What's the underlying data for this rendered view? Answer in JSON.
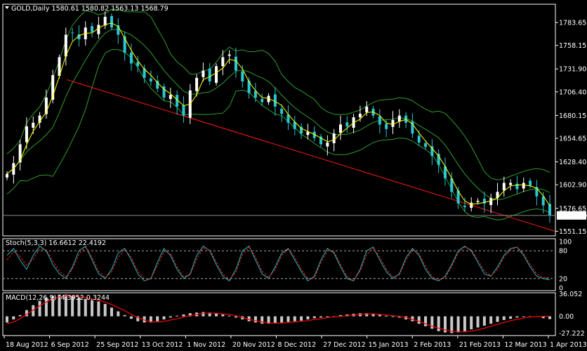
{
  "header": {
    "main": "GOLD,Daily  1580.61 1580.82 1563.13 1568.79",
    "stoch": "Stoch(5,3,3) 16.6612 22.4192",
    "macd": "MACD(12,26,9) -4.3952 0.3244"
  },
  "colors": {
    "bull": "#ffffff",
    "bear": "#29c8d2",
    "ma": "#ffff00",
    "bands": "#2e9d2e",
    "trend": "#ff1a1a",
    "stoch_main": "#27b7c0",
    "stoch_signal": "#ff2020",
    "macd_hist": "#c8c8c8",
    "macd_signal": "#ff0000",
    "axis": "#ffffff"
  },
  "price_axis": {
    "ticks": [
      "1783.65",
      "1758.15",
      "1731.90",
      "1706.40",
      "1680.15",
      "1654.65",
      "1628.40",
      "1602.90",
      "1576.65",
      "1551.15"
    ],
    "last": "1568.79",
    "range": [
      1546,
      1804
    ]
  },
  "stoch_axis": {
    "ticks": [
      "100",
      "80",
      "20",
      "0"
    ],
    "levels": [
      80,
      20
    ]
  },
  "macd_axis": {
    "ticks": [
      "36.052",
      "0.00",
      "-27.222"
    ],
    "range": [
      -31,
      38
    ]
  },
  "dates": [
    "18 Aug 2012",
    "6 Sep 2012",
    "25 Sep 2012",
    "13 Oct 2012",
    "1 Nov 2012",
    "20 Nov 2012",
    "8 Dec 2012",
    "27 Dec 2012",
    "15 Jan 2013",
    "2 Feb 2013",
    "21 Feb 2013",
    "12 Mar 2013",
    "1 Apr 2013"
  ],
  "chart_data": {
    "type": "candlestick",
    "symbol": "GOLD",
    "timeframe": "Daily",
    "last_bar": {
      "open": 1580.61,
      "high": 1580.82,
      "low": 1563.13,
      "close": 1568.79
    },
    "close_path": [
      1615,
      1627,
      1648,
      1668,
      1672,
      1680,
      1700,
      1725,
      1745,
      1770,
      1772,
      1765,
      1778,
      1773,
      1781,
      1790,
      1778,
      1770,
      1750,
      1738,
      1735,
      1722,
      1718,
      1710,
      1700,
      1703,
      1690,
      1680,
      1708,
      1722,
      1730,
      1718,
      1735,
      1745,
      1748,
      1730,
      1718,
      1705,
      1700,
      1695,
      1702,
      1690,
      1682,
      1672,
      1665,
      1660,
      1662,
      1655,
      1648,
      1650,
      1660,
      1670,
      1668,
      1678,
      1682,
      1690,
      1680,
      1670,
      1665,
      1675,
      1680,
      1672,
      1660,
      1650,
      1645,
      1635,
      1625,
      1610,
      1595,
      1582,
      1578,
      1583,
      1585,
      1582,
      1588,
      1595,
      1605,
      1605,
      1598,
      1605,
      1602,
      1590,
      1580,
      1568.79
    ],
    "stochastic": {
      "params": "5,3,3",
      "main": 16.6612,
      "signal": 22.4192,
      "main_path": [
        70,
        85,
        60,
        40,
        70,
        90,
        80,
        50,
        30,
        20,
        45,
        80,
        90,
        60,
        30,
        20,
        40,
        75,
        85,
        60,
        30,
        15,
        20,
        55,
        85,
        70,
        40,
        20,
        30,
        70,
        90,
        80,
        50,
        25,
        15,
        40,
        80,
        90,
        60,
        30,
        20,
        45,
        75,
        85,
        60,
        35,
        15,
        25,
        60,
        85,
        75,
        45,
        20,
        15,
        40,
        80,
        88,
        60,
        35,
        20,
        30,
        65,
        85,
        70,
        40,
        20,
        15,
        25,
        50,
        80,
        90,
        80,
        55,
        30,
        25,
        45,
        70,
        85,
        88,
        70,
        45,
        25,
        20,
        17
      ],
      "signal_path": [
        60,
        78,
        68,
        48,
        62,
        84,
        82,
        58,
        36,
        24,
        40,
        72,
        88,
        66,
        36,
        22,
        34,
        66,
        82,
        66,
        36,
        20,
        20,
        48,
        78,
        74,
        46,
        24,
        28,
        62,
        86,
        82,
        56,
        30,
        18,
        34,
        72,
        88,
        66,
        36,
        22,
        40,
        70,
        84,
        66,
        40,
        20,
        22,
        54,
        80,
        78,
        50,
        24,
        16,
        36,
        72,
        86,
        66,
        40,
        24,
        28,
        60,
        82,
        74,
        46,
        24,
        17,
        22,
        46,
        76,
        88,
        82,
        60,
        36,
        26,
        40,
        66,
        82,
        88,
        74,
        50,
        30,
        22,
        22.4
      ]
    },
    "macd": {
      "params": "12,26,9",
      "main": -4.3952,
      "signal": 0.3244,
      "hist_path": [
        -10,
        -5,
        2,
        10,
        18,
        25,
        30,
        33,
        35,
        35,
        33,
        30,
        28,
        26,
        24,
        20,
        14,
        8,
        2,
        -4,
        -8,
        -10,
        -10,
        -8,
        -5,
        -2,
        1,
        3,
        5,
        6,
        7,
        6,
        5,
        3,
        1,
        -2,
        -5,
        -8,
        -10,
        -12,
        -12,
        -11,
        -10,
        -9,
        -8,
        -7,
        -5,
        -3,
        -2,
        -1,
        0,
        2,
        3,
        4,
        5,
        5,
        4,
        3,
        1,
        0,
        -2,
        -5,
        -8,
        -12,
        -16,
        -20,
        -24,
        -26,
        -27,
        -26,
        -24,
        -21,
        -18,
        -15,
        -12,
        -9,
        -6,
        -4,
        -2,
        -1,
        0,
        -1,
        -3,
        -4.4
      ],
      "signal_path": [
        -12,
        -9,
        -4,
        3,
        10,
        17,
        23,
        28,
        31,
        33,
        33,
        32,
        30,
        28,
        26,
        23,
        19,
        14,
        9,
        3,
        -2,
        -6,
        -9,
        -9,
        -8,
        -6,
        -4,
        -1,
        1,
        3,
        5,
        5,
        5,
        4,
        3,
        1,
        -2,
        -5,
        -7,
        -9,
        -11,
        -11,
        -11,
        -10,
        -9,
        -8,
        -7,
        -5,
        -4,
        -2,
        -1,
        0,
        1,
        2,
        3,
        4,
        4,
        3,
        2,
        1,
        0,
        -2,
        -5,
        -8,
        -12,
        -16,
        -19,
        -22,
        -24,
        -25,
        -25,
        -24,
        -22,
        -19,
        -16,
        -13,
        -10,
        -7,
        -5,
        -3,
        -1,
        -0.5,
        0,
        0.3
      ]
    }
  }
}
